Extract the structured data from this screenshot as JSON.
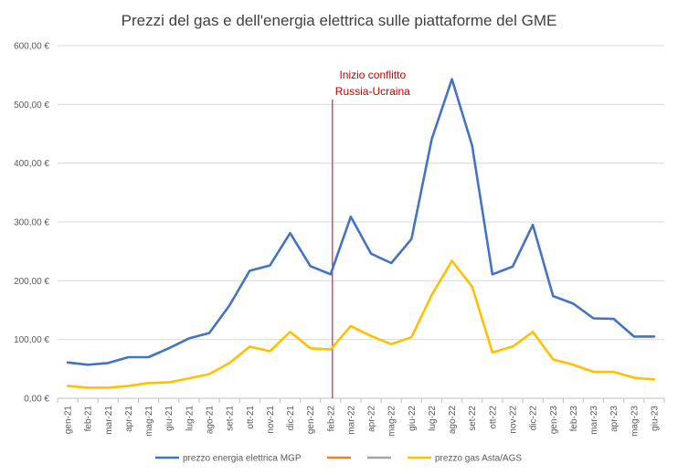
{
  "chart_data": {
    "type": "line",
    "title": "Prezzi del gas e dell'energia elettrica sulle piattaforme del GME",
    "xlabel": "",
    "ylabel": "",
    "ylim": [
      0,
      600
    ],
    "y_ticks": [
      "0,00 €",
      "100,00 €",
      "200,00 €",
      "300,00 €",
      "400,00 €",
      "500,00 €",
      "600,00 €"
    ],
    "grid": true,
    "legend_position": "bottom",
    "categories": [
      "gen-21",
      "feb-21",
      "mar-21",
      "apr-21",
      "mag-21",
      "giu-21",
      "lug-21",
      "ago-21",
      "set-21",
      "ott-21",
      "nov-21",
      "dic-21",
      "gen-22",
      "feb-22",
      "mar-22",
      "apr-22",
      "mag-22",
      "giu-22",
      "lug-22",
      "ago-22",
      "set-22",
      "ott-22",
      "nov-22",
      "dic-22",
      "gen-23",
      "feb-23",
      "mar-23",
      "apr-23",
      "mag-23",
      "giu-23"
    ],
    "series": [
      {
        "name": "prezzo energia elettrica MGP",
        "color": "#4472c4",
        "values": [
          61,
          57,
          60,
          70,
          70,
          85,
          102,
          111,
          158,
          217,
          226,
          281,
          225,
          211,
          309,
          246,
          230,
          271,
          441,
          543,
          430,
          211,
          224,
          295,
          174,
          161,
          136,
          135,
          105,
          105
        ]
      },
      {
        "name": "prezzo gas Asta/AGS",
        "color": "#ffc000",
        "values": [
          21,
          18,
          18,
          21,
          26,
          27,
          34,
          41,
          60,
          88,
          80,
          113,
          85,
          83,
          123,
          106,
          92,
          104,
          176,
          234,
          190,
          78,
          88,
          113,
          66,
          57,
          45,
          45,
          35,
          32
        ]
      }
    ],
    "legend_extra": [
      {
        "color": "#ed7d31"
      },
      {
        "color": "#a5a5a5"
      }
    ],
    "annotation": {
      "lines": [
        "Inizio conflitto",
        "Russia-Ucraina"
      ],
      "x_category": "feb-22",
      "color": "#c00000"
    }
  }
}
